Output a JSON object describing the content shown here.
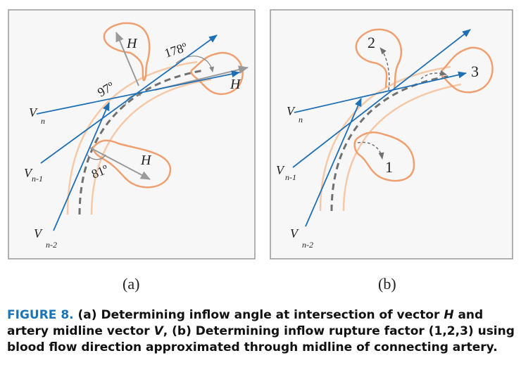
{
  "figure": {
    "panel_a": {
      "sublabel": "(a)",
      "vector_labels": {
        "vn": "V",
        "vn_sub": "n",
        "vn1": "V",
        "vn1_sub": "n-1",
        "vn2": "V",
        "vn2_sub": "n-2"
      },
      "h_label": "H",
      "angles": [
        "97º",
        "178º",
        "81º"
      ]
    },
    "panel_b": {
      "sublabel": "(b)",
      "vector_labels": {
        "vn": "V",
        "vn_sub": "n",
        "vn1": "V",
        "vn1_sub": "n-1",
        "vn2": "V",
        "vn2_sub": "n-2"
      },
      "factors": [
        "1",
        "2",
        "3"
      ]
    },
    "colors": {
      "vector_blue": "#1f6fb5",
      "aneurysm_orange": "#f0a070",
      "vessel_wall": "#f5c9a8",
      "midline_gray": "#707070",
      "h_arrow_gray": "#9a9a9a",
      "panel_border": "#999999",
      "panel_bg": "#f7f7f7"
    }
  },
  "caption": {
    "label": "FIGURE 8.",
    "part1": " (a) Determining inflow angle at intersection of vector ",
    "H": "H",
    "part2": " and artery midline vector ",
    "V": "V",
    "part3": ", (b) Determining inflow rupture factor (1,2,3) using blood flow direction approximated through midline of connecting artery."
  }
}
